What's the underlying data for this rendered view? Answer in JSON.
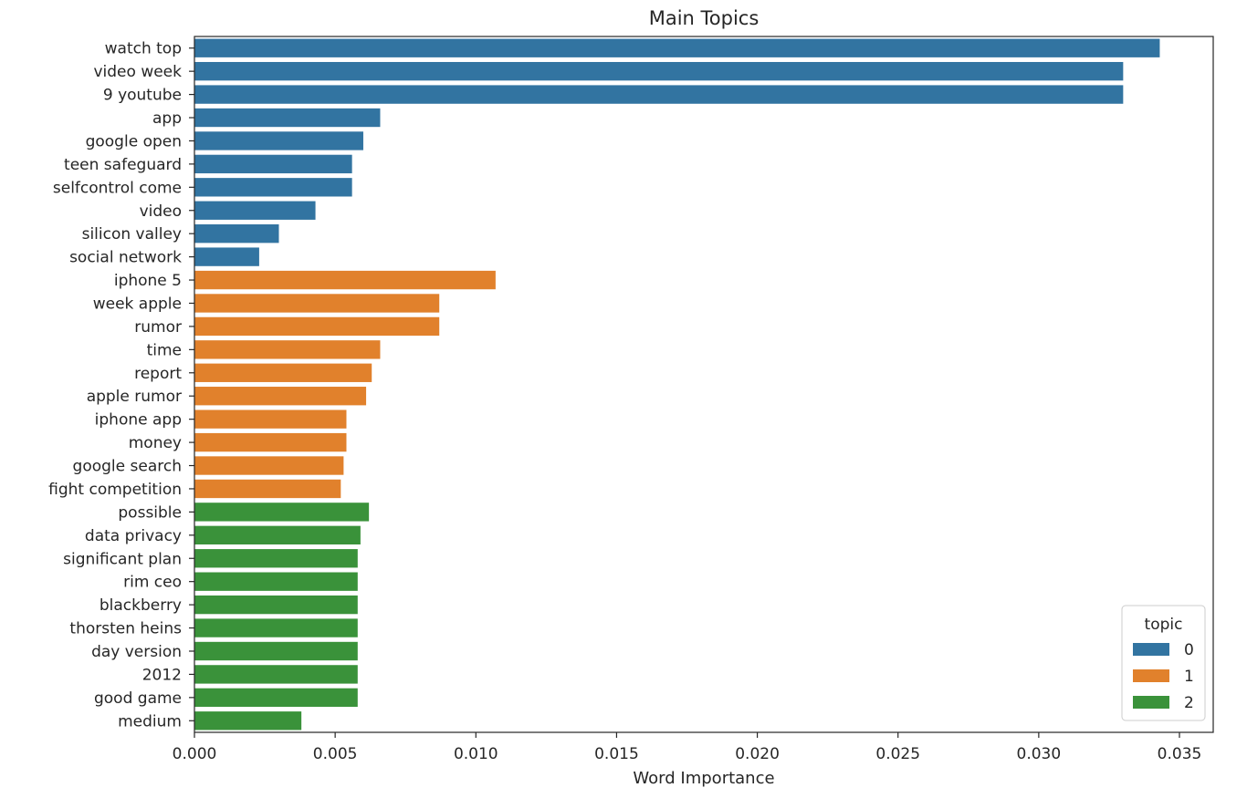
{
  "chart_data": {
    "type": "bar",
    "orientation": "horizontal",
    "title": "Main Topics",
    "xlabel": "Word Importance",
    "ylabel": "",
    "xlim": [
      0,
      0.0362
    ],
    "xticks": [
      0.0,
      0.005,
      0.01,
      0.015,
      0.02,
      0.025,
      0.03,
      0.035
    ],
    "xtick_labels": [
      "0.000",
      "0.005",
      "0.010",
      "0.015",
      "0.020",
      "0.025",
      "0.030",
      "0.035"
    ],
    "grid": false,
    "legend": {
      "title": "topic",
      "placement": "lower-right",
      "entries": [
        {
          "label": "0",
          "color": "#3274a1"
        },
        {
          "label": "1",
          "color": "#e1812c"
        },
        {
          "label": "2",
          "color": "#3a923a"
        }
      ]
    },
    "categories": [
      "watch top",
      "video week",
      "9 youtube",
      "app",
      "google open",
      "teen safeguard",
      "selfcontrol come",
      "video",
      "silicon valley",
      "social network",
      "iphone 5",
      "week apple",
      "rumor",
      "time",
      "report",
      "apple rumor",
      "iphone app",
      "money",
      "google search",
      "fight competition",
      "possible",
      "data privacy",
      "significant plan",
      "rim ceo",
      "blackberry",
      "thorsten heins",
      "day version",
      "2012",
      "good game",
      "medium"
    ],
    "values": [
      0.0343,
      0.033,
      0.033,
      0.0066,
      0.006,
      0.0056,
      0.0056,
      0.0043,
      0.003,
      0.0023,
      0.0107,
      0.0087,
      0.0087,
      0.0066,
      0.0063,
      0.0061,
      0.0054,
      0.0054,
      0.0053,
      0.0052,
      0.0062,
      0.0059,
      0.0058,
      0.0058,
      0.0058,
      0.0058,
      0.0058,
      0.0058,
      0.0058,
      0.0038
    ],
    "topics": [
      "0",
      "0",
      "0",
      "0",
      "0",
      "0",
      "0",
      "0",
      "0",
      "0",
      "1",
      "1",
      "1",
      "1",
      "1",
      "1",
      "1",
      "1",
      "1",
      "1",
      "2",
      "2",
      "2",
      "2",
      "2",
      "2",
      "2",
      "2",
      "2",
      "2"
    ]
  }
}
